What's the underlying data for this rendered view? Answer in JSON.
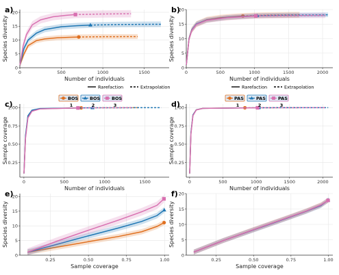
{
  "colors": {
    "s1": "#E07020",
    "s2": "#1F77B4",
    "s3": "#D870B0",
    "grid": "#e6e6e6",
    "axis": "#333333",
    "legend_bg": "#dde8f4"
  },
  "legend_ext": {
    "rarefaction": "Rarefaction",
    "extrapolation": "Extrapolation"
  },
  "chart_data": [
    {
      "id": "a",
      "panel_label": "a)",
      "type": "line",
      "xlabel": "Number of individuals",
      "ylabel": "Species diversity",
      "xlim": [
        0,
        1800
      ],
      "ylim": [
        0,
        21
      ],
      "xticks": [
        0,
        500,
        1000,
        1500
      ],
      "yticks": [
        0,
        5,
        10,
        15,
        20
      ],
      "series": [
        {
          "name": "BOS 1",
          "color": "s1",
          "shape": "circle",
          "interp": [
            [
              1,
              1
            ],
            [
              50,
              5
            ],
            [
              100,
              8
            ],
            [
              200,
              9.8
            ],
            [
              300,
              10.4
            ],
            [
              450,
              10.8
            ],
            [
              600,
              11
            ],
            [
              710,
              11.1
            ]
          ],
          "extrap": [
            [
              710,
              11.1
            ],
            [
              1000,
              11.2
            ],
            [
              1420,
              11.25
            ]
          ],
          "ref": [
            710,
            11.1
          ],
          "band": 0.9
        },
        {
          "name": "BOS 2",
          "color": "s2",
          "shape": "triangle",
          "interp": [
            [
              1,
              1
            ],
            [
              50,
              7
            ],
            [
              100,
              10
            ],
            [
              200,
              12.5
            ],
            [
              300,
              13.8
            ],
            [
              500,
              14.8
            ],
            [
              700,
              15.2
            ],
            [
              850,
              15.4
            ]
          ],
          "extrap": [
            [
              850,
              15.4
            ],
            [
              1200,
              15.6
            ],
            [
              1700,
              15.7
            ]
          ],
          "ref": [
            850,
            15.4
          ],
          "band": 1.0
        },
        {
          "name": "BOS 3",
          "color": "s3",
          "shape": "square",
          "interp": [
            [
              1,
              1
            ],
            [
              40,
              8
            ],
            [
              80,
              12
            ],
            [
              150,
              15.5
            ],
            [
              250,
              17.3
            ],
            [
              400,
              18.4
            ],
            [
              550,
              18.9
            ],
            [
              670,
              19.2
            ]
          ],
          "extrap": [
            [
              670,
              19.2
            ],
            [
              1000,
              19.4
            ],
            [
              1340,
              19.5
            ]
          ],
          "ref": [
            670,
            19.2
          ],
          "band": 1.3
        }
      ]
    },
    {
      "id": "b",
      "panel_label": "b)",
      "type": "line",
      "xlabel": "Number of individuals",
      "ylabel": "Species diversity",
      "xlim": [
        0,
        2150
      ],
      "ylim": [
        0,
        20
      ],
      "xticks": [
        0,
        500,
        1000,
        1500,
        2000
      ],
      "yticks": [
        0,
        5,
        10,
        15,
        20
      ],
      "series": [
        {
          "name": "PAS 1",
          "color": "s1",
          "shape": "circle",
          "interp": [
            [
              1,
              1
            ],
            [
              40,
              10
            ],
            [
              80,
              13
            ],
            [
              150,
              15
            ],
            [
              300,
              16.5
            ],
            [
              500,
              17.2
            ],
            [
              830,
              17.8
            ]
          ],
          "extrap": [
            [
              830,
              17.8
            ],
            [
              1200,
              18.1
            ],
            [
              1660,
              18.2
            ]
          ],
          "ref": [
            830,
            17.8
          ],
          "band": 1.0
        },
        {
          "name": "PAS 2",
          "color": "s2",
          "shape": "triangle",
          "interp": [
            [
              1,
              1
            ],
            [
              40,
              10
            ],
            [
              80,
              13
            ],
            [
              150,
              15.1
            ],
            [
              300,
              16.4
            ],
            [
              600,
              17.3
            ],
            [
              1040,
              17.9
            ]
          ],
          "extrap": [
            [
              1040,
              17.9
            ],
            [
              1500,
              18.1
            ],
            [
              2080,
              18.2
            ]
          ],
          "ref": [
            1040,
            17.9
          ],
          "band": 0.8
        },
        {
          "name": "PAS 3",
          "color": "s3",
          "shape": "square",
          "interp": [
            [
              1,
              1
            ],
            [
              40,
              9.8
            ],
            [
              80,
              12.8
            ],
            [
              150,
              14.9
            ],
            [
              300,
              16.3
            ],
            [
              600,
              17.2
            ],
            [
              1020,
              17.8
            ]
          ],
          "extrap": [
            [
              1020,
              17.8
            ],
            [
              1500,
              17.9
            ],
            [
              2040,
              18
            ]
          ],
          "ref": [
            1020,
            17.8
          ],
          "band": 0.9
        }
      ]
    },
    {
      "id": "c",
      "panel_label": "c)",
      "type": "line",
      "xlabel": "Number of individuals",
      "ylabel": "Sample coverage",
      "xlim": [
        -50,
        1800
      ],
      "ylim": [
        0.05,
        1.05
      ],
      "xticks": [
        0,
        500,
        1000,
        1500
      ],
      "yticks": [
        0.25,
        0.5,
        0.75,
        1.0
      ],
      "yticklabels": [
        "0.25",
        "0.50",
        "0.75",
        "1.00"
      ],
      "series": [
        {
          "name": "BOS 1",
          "color": "s1",
          "shape": "circle",
          "interp": [
            [
              1,
              0.1
            ],
            [
              20,
              0.6
            ],
            [
              50,
              0.88
            ],
            [
              100,
              0.96
            ],
            [
              200,
              0.985
            ],
            [
              710,
              0.997
            ]
          ],
          "extrap": [
            [
              710,
              0.997
            ],
            [
              1420,
              1.0
            ]
          ],
          "ref": [
            710,
            0.997
          ]
        },
        {
          "name": "BOS 2",
          "color": "s2",
          "shape": "triangle",
          "interp": [
            [
              1,
              0.1
            ],
            [
              20,
              0.62
            ],
            [
              50,
              0.89
            ],
            [
              100,
              0.965
            ],
            [
              200,
              0.988
            ],
            [
              850,
              0.998
            ]
          ],
          "extrap": [
            [
              850,
              0.998
            ],
            [
              1700,
              1.0
            ]
          ],
          "ref": [
            850,
            0.998
          ]
        },
        {
          "name": "BOS 3",
          "color": "s3",
          "shape": "square",
          "interp": [
            [
              1,
              0.1
            ],
            [
              20,
              0.58
            ],
            [
              50,
              0.86
            ],
            [
              100,
              0.95
            ],
            [
              200,
              0.982
            ],
            [
              670,
              0.996
            ]
          ],
          "extrap": [
            [
              670,
              0.996
            ],
            [
              1340,
              1.0
            ]
          ],
          "ref": [
            670,
            0.996
          ]
        }
      ]
    },
    {
      "id": "d",
      "panel_label": "d)",
      "type": "line",
      "xlabel": "Number of individuals",
      "ylabel": "Sample coverage",
      "xlim": [
        -50,
        2150
      ],
      "ylim": [
        0.05,
        1.05
      ],
      "xticks": [
        0,
        500,
        1000,
        1500,
        2000
      ],
      "yticks": [
        0.25,
        0.5,
        0.75,
        1.0
      ],
      "yticklabels": [
        "0.25",
        "0.50",
        "0.75",
        "1.00"
      ],
      "series": [
        {
          "name": "PAS 1",
          "color": "s1",
          "shape": "circle",
          "interp": [
            [
              1,
              0.1
            ],
            [
              20,
              0.65
            ],
            [
              50,
              0.9
            ],
            [
              100,
              0.97
            ],
            [
              200,
              0.99
            ],
            [
              830,
              0.998
            ]
          ],
          "extrap": [
            [
              830,
              0.998
            ],
            [
              1660,
              1.0
            ]
          ],
          "ref": [
            830,
            0.998
          ]
        },
        {
          "name": "PAS 2",
          "color": "s2",
          "shape": "triangle",
          "interp": [
            [
              1,
              0.1
            ],
            [
              20,
              0.66
            ],
            [
              50,
              0.9
            ],
            [
              100,
              0.97
            ],
            [
              200,
              0.99
            ],
            [
              1040,
              0.999
            ]
          ],
          "extrap": [
            [
              1040,
              0.999
            ],
            [
              2080,
              1.0
            ]
          ],
          "ref": [
            1040,
            0.999
          ]
        },
        {
          "name": "PAS 3",
          "color": "s3",
          "shape": "square",
          "interp": [
            [
              1,
              0.1
            ],
            [
              20,
              0.64
            ],
            [
              50,
              0.89
            ],
            [
              100,
              0.968
            ],
            [
              200,
              0.99
            ],
            [
              1020,
              0.998
            ]
          ],
          "extrap": [
            [
              1020,
              0.998
            ],
            [
              2040,
              1.0
            ]
          ],
          "ref": [
            1020,
            0.998
          ]
        }
      ]
    },
    {
      "id": "e",
      "panel_label": "e)",
      "type": "line",
      "xlabel": "Sample coverage",
      "ylabel": "Species diversity",
      "xlim": [
        0.05,
        1.03
      ],
      "ylim": [
        0,
        21
      ],
      "xticks": [
        0.25,
        0.5,
        0.75,
        1.0
      ],
      "yticks": [
        0,
        5,
        10,
        15,
        20
      ],
      "xticklabels": [
        "0.25",
        "0.50",
        "0.75",
        "1.00"
      ],
      "series": [
        {
          "name": "BOS 1",
          "color": "s1",
          "shape": "circle",
          "interp": [
            [
              0.1,
              1
            ],
            [
              0.3,
              2.8
            ],
            [
              0.5,
              4.6
            ],
            [
              0.7,
              6.4
            ],
            [
              0.85,
              8
            ],
            [
              0.95,
              9.8
            ],
            [
              0.997,
              11.1
            ]
          ],
          "extrap": [],
          "ref": [
            0.997,
            11.1
          ],
          "band": 0.9
        },
        {
          "name": "BOS 2",
          "color": "s2",
          "shape": "triangle",
          "interp": [
            [
              0.1,
              1
            ],
            [
              0.3,
              3.8
            ],
            [
              0.5,
              6.6
            ],
            [
              0.7,
              9.3
            ],
            [
              0.85,
              11.5
            ],
            [
              0.95,
              13.5
            ],
            [
              0.998,
              15.4
            ]
          ],
          "extrap": [],
          "ref": [
            0.998,
            15.4
          ],
          "band": 1.0
        },
        {
          "name": "BOS 3",
          "color": "s3",
          "shape": "square",
          "interp": [
            [
              0.1,
              1
            ],
            [
              0.3,
              4.9
            ],
            [
              0.5,
              8.5
            ],
            [
              0.7,
              12
            ],
            [
              0.85,
              14.8
            ],
            [
              0.95,
              17
            ],
            [
              0.996,
              19.2
            ]
          ],
          "extrap": [],
          "ref": [
            0.996,
            19.2
          ],
          "band": 1.3
        }
      ]
    },
    {
      "id": "f",
      "panel_label": "f)",
      "type": "line",
      "xlabel": "Sample coverage",
      "ylabel": "Species diversity",
      "xlim": [
        0.05,
        1.03
      ],
      "ylim": [
        0,
        20
      ],
      "xticks": [
        0.25,
        0.5,
        0.75,
        1.0
      ],
      "yticks": [
        0,
        5,
        10,
        15,
        20
      ],
      "xticklabels": [
        "0.25",
        "0.50",
        "0.75",
        "1.00"
      ],
      "series": [
        {
          "name": "PAS 1",
          "color": "s1",
          "shape": "circle",
          "interp": [
            [
              0.1,
              1
            ],
            [
              0.3,
              4.8
            ],
            [
              0.5,
              8.3
            ],
            [
              0.7,
              11.7
            ],
            [
              0.85,
              14.3
            ],
            [
              0.95,
              16.3
            ],
            [
              0.998,
              17.8
            ]
          ],
          "extrap": [],
          "ref": [
            0.998,
            17.8
          ],
          "band": 0.8
        },
        {
          "name": "PAS 2",
          "color": "s2",
          "shape": "triangle",
          "interp": [
            [
              0.1,
              1
            ],
            [
              0.3,
              4.8
            ],
            [
              0.5,
              8.2
            ],
            [
              0.7,
              11.6
            ],
            [
              0.85,
              14.2
            ],
            [
              0.95,
              16.1
            ],
            [
              0.999,
              17.9
            ]
          ],
          "extrap": [],
          "ref": [
            0.999,
            17.9
          ],
          "band": 0.8
        },
        {
          "name": "PAS 3",
          "color": "s3",
          "shape": "square",
          "interp": [
            [
              0.1,
              1
            ],
            [
              0.3,
              4.8
            ],
            [
              0.5,
              8.3
            ],
            [
              0.7,
              11.7
            ],
            [
              0.85,
              14.3
            ],
            [
              0.95,
              16.3
            ],
            [
              0.998,
              17.8
            ]
          ],
          "extrap": [],
          "ref": [
            0.998,
            17.8
          ],
          "band": 0.8
        }
      ]
    }
  ],
  "legends": [
    {
      "id": "left",
      "items": [
        {
          "label": "BOS",
          "sub": "1",
          "color": "s1",
          "shape": "circle"
        },
        {
          "label": "BOS",
          "sub": "2",
          "color": "s2",
          "shape": "triangle"
        },
        {
          "label": "BOS",
          "sub": "3",
          "color": "s3",
          "shape": "square"
        }
      ]
    },
    {
      "id": "right",
      "items": [
        {
          "label": "PAS",
          "sub": "1",
          "color": "s1",
          "shape": "circle"
        },
        {
          "label": "PAS",
          "sub": "2",
          "color": "s2",
          "shape": "triangle"
        },
        {
          "label": "PAS",
          "sub": "3",
          "color": "s3",
          "shape": "square"
        }
      ]
    }
  ]
}
